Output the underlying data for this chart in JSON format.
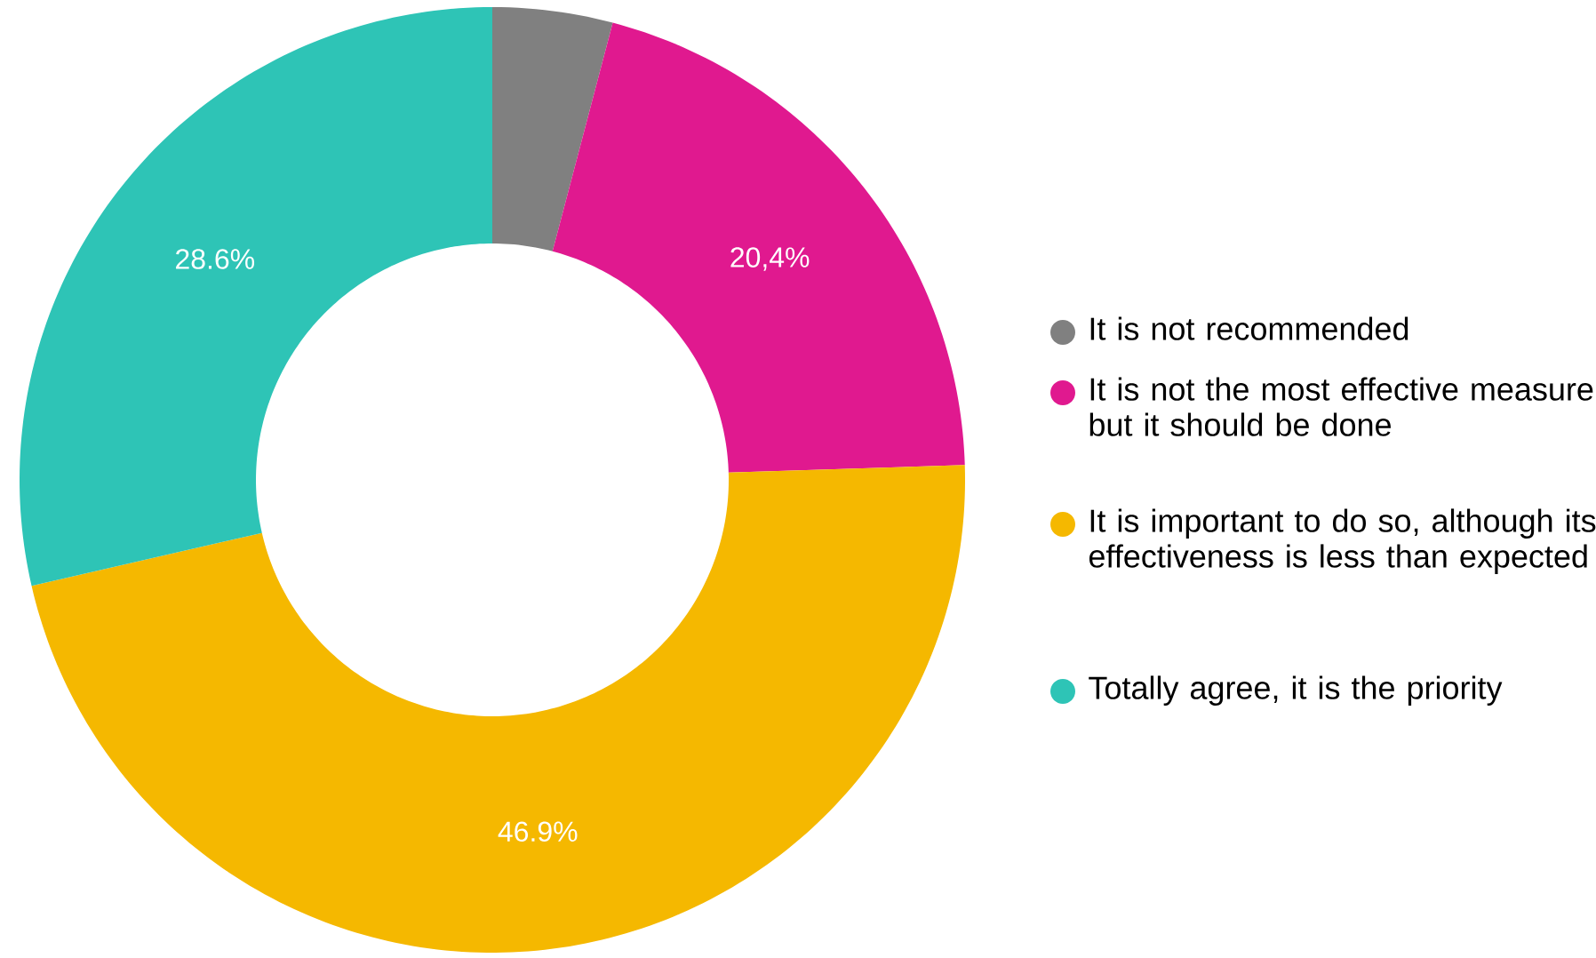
{
  "chart_data": {
    "type": "donut",
    "categories": [
      "It is not recommended",
      "It is not the most effective measure but it should be done",
      "It is important to do so, although its effectiveness is less than expected",
      "Totally agree, it is the priority"
    ],
    "values": [
      4.1,
      20.4,
      46.9,
      28.6
    ],
    "value_labels": [
      null,
      "20,4%",
      "46.9%",
      "28.6%"
    ],
    "colors": [
      "#808080",
      "#e0198f",
      "#f5b800",
      "#2ec4b6"
    ],
    "legend": "right"
  }
}
